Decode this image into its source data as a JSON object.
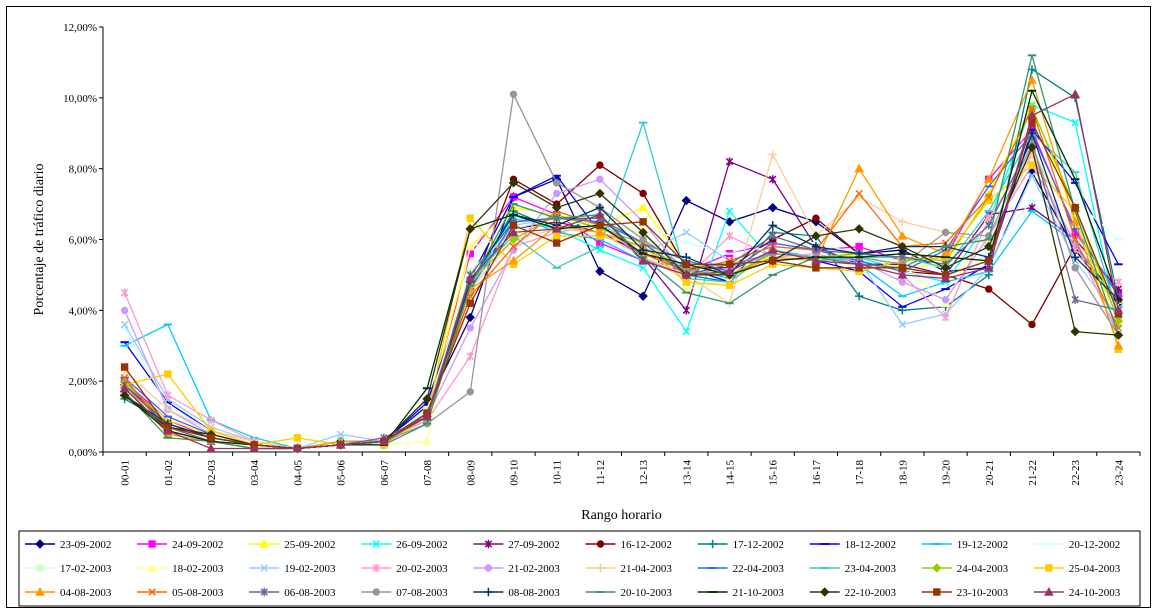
{
  "chart_data": {
    "type": "line",
    "title": "",
    "xlabel": "Rango horario",
    "ylabel": "Porcentaje de tráfico diario",
    "ylim": [
      0,
      12
    ],
    "y_ticks": [
      "0,00%",
      "2,00%",
      "4,00%",
      "6,00%",
      "8,00%",
      "10,00%",
      "12,00%"
    ],
    "categories": [
      "00-01",
      "01-02",
      "02-03",
      "03-04",
      "04-05",
      "05-06",
      "06-07",
      "07-08",
      "08-09",
      "09-10",
      "10-11",
      "11-12",
      "12-13",
      "13-14",
      "14-15",
      "15-16",
      "16-17",
      "17-18",
      "18-19",
      "19-20",
      "20-21",
      "21-22",
      "22-23",
      "23-24"
    ],
    "grid": false,
    "legend_placement": "bottom",
    "series": [
      {
        "name": "23-09-2002",
        "color": "#000080",
        "marker": "diamond",
        "values": [
          1.9,
          0.8,
          0.4,
          0.2,
          0.1,
          0.3,
          0.3,
          1.3,
          3.8,
          7.2,
          7.7,
          5.1,
          4.4,
          7.1,
          6.5,
          6.9,
          6.5,
          5.6,
          5.7,
          5.1,
          5.2,
          7.9,
          5.7,
          4.2
        ]
      },
      {
        "name": "24-09-2002",
        "color": "#ff00ff",
        "marker": "square",
        "values": [
          2.0,
          0.9,
          0.4,
          0.2,
          0.1,
          0.2,
          0.3,
          1.2,
          5.6,
          7.2,
          6.7,
          5.9,
          5.4,
          5.1,
          5.6,
          5.9,
          5.7,
          5.8,
          5.4,
          5.5,
          7.7,
          9.1,
          6.2,
          4.5
        ]
      },
      {
        "name": "25-09-2002",
        "color": "#ffff00",
        "marker": "triangle",
        "values": [
          1.9,
          0.9,
          0.5,
          0.2,
          0.1,
          0.2,
          0.3,
          1.1,
          5.8,
          6.9,
          6.7,
          6.4,
          6.9,
          5.3,
          5.2,
          5.6,
          5.4,
          5.6,
          5.2,
          5.3,
          7.3,
          9.8,
          6.6,
          3.7
        ]
      },
      {
        "name": "26-09-2002",
        "color": "#00ffff",
        "marker": "x",
        "values": [
          2.0,
          0.7,
          0.4,
          0.2,
          0.1,
          0.3,
          0.2,
          1.0,
          4.7,
          6.6,
          6.3,
          5.7,
          5.2,
          3.4,
          6.8,
          5.4,
          5.5,
          5.5,
          5.1,
          4.8,
          6.5,
          9.8,
          9.3,
          3.6
        ]
      },
      {
        "name": "27-09-2002",
        "color": "#800080",
        "marker": "star",
        "values": [
          1.9,
          0.8,
          0.4,
          0.2,
          0.1,
          0.2,
          0.2,
          1.1,
          4.8,
          6.3,
          6.5,
          6.2,
          5.5,
          4.0,
          8.2,
          7.7,
          5.8,
          5.3,
          5.3,
          5.0,
          6.7,
          6.9,
          6.0,
          4.6
        ]
      },
      {
        "name": "16-12-2002",
        "color": "#800000",
        "marker": "circle",
        "values": [
          2.0,
          0.8,
          0.4,
          0.2,
          0.1,
          0.2,
          0.3,
          1.0,
          4.5,
          7.7,
          7.0,
          8.1,
          7.3,
          5.2,
          5.2,
          6.0,
          6.6,
          5.6,
          5.1,
          5.0,
          4.6,
          3.6,
          5.8,
          4.3
        ]
      },
      {
        "name": "17-12-2002",
        "color": "#008080",
        "marker": "plus",
        "values": [
          1.5,
          0.8,
          0.4,
          0.2,
          0.1,
          0.2,
          0.3,
          0.9,
          4.7,
          6.8,
          6.3,
          6.5,
          5.4,
          5.0,
          4.8,
          6.2,
          6.1,
          4.4,
          4.0,
          4.1,
          5.0,
          10.8,
          10.0,
          4.3
        ]
      },
      {
        "name": "18-12-2002",
        "color": "#0000ff",
        "marker": "dash",
        "values": [
          3.1,
          1.4,
          0.6,
          0.3,
          0.1,
          0.2,
          0.3,
          1.4,
          4.9,
          7.2,
          7.8,
          6.2,
          5.6,
          5.2,
          4.8,
          5.7,
          5.4,
          5.1,
          4.1,
          4.6,
          5.3,
          9.1,
          7.6,
          5.3
        ]
      },
      {
        "name": "19-12-2002",
        "color": "#00ccff",
        "marker": "dash",
        "values": [
          3.0,
          3.6,
          0.9,
          0.4,
          0.1,
          0.2,
          0.3,
          1.2,
          4.7,
          6.7,
          6.2,
          6.0,
          5.4,
          5.2,
          4.9,
          5.7,
          5.5,
          5.3,
          4.4,
          4.8,
          5.1,
          6.8,
          5.9,
          4.1
        ]
      },
      {
        "name": "20-12-2002",
        "color": "#ccffff",
        "marker": "dash",
        "values": [
          3.5,
          1.3,
          0.6,
          0.3,
          0.1,
          0.2,
          0.3,
          1.2,
          4.5,
          6.4,
          6.7,
          6.2,
          6.4,
          5.9,
          5.6,
          5.8,
          5.9,
          5.6,
          5.1,
          4.9,
          5.6,
          7.1,
          7.1,
          6.0
        ]
      },
      {
        "name": "17-02-2003",
        "color": "#ccffcc",
        "marker": "square",
        "values": [
          1.9,
          0.7,
          0.4,
          0.2,
          0.1,
          0.2,
          0.3,
          1.2,
          5.1,
          6.3,
          6.6,
          6.4,
          6.2,
          4.7,
          4.8,
          5.6,
          5.5,
          5.6,
          5.4,
          5.2,
          5.8,
          8.5,
          6.5,
          4.0
        ]
      },
      {
        "name": "18-02-2003",
        "color": "#ffff99",
        "marker": "triangle",
        "values": [
          1.8,
          0.7,
          0.4,
          0.2,
          0.1,
          0.2,
          0.2,
          0.3,
          5.8,
          6.1,
          6.6,
          6.3,
          6.3,
          4.6,
          4.8,
          5.6,
          5.4,
          5.5,
          5.3,
          4.2,
          6.6,
          8.6,
          6.4,
          3.7
        ]
      },
      {
        "name": "19-02-2003",
        "color": "#99ccff",
        "marker": "x",
        "values": [
          3.6,
          1.5,
          0.7,
          0.3,
          0.1,
          0.5,
          0.3,
          1.1,
          4.7,
          6.4,
          6.6,
          6.5,
          5.6,
          6.2,
          5.4,
          5.8,
          5.7,
          5.4,
          3.6,
          3.9,
          5.2,
          7.8,
          5.4,
          3.8
        ]
      },
      {
        "name": "20-02-2003",
        "color": "#ff99cc",
        "marker": "star",
        "values": [
          4.5,
          1.6,
          0.9,
          0.3,
          0.1,
          0.2,
          0.3,
          0.9,
          2.7,
          5.8,
          6.2,
          6.4,
          5.5,
          4.9,
          6.1,
          5.5,
          5.6,
          5.3,
          5.0,
          3.8,
          6.6,
          8.4,
          5.7,
          4.8
        ]
      },
      {
        "name": "21-02-2003",
        "color": "#cc99ff",
        "marker": "circle",
        "values": [
          4.0,
          1.2,
          0.5,
          0.2,
          0.1,
          0.2,
          0.3,
          1.0,
          3.5,
          5.7,
          7.3,
          7.7,
          6.5,
          5.0,
          5.2,
          5.6,
          5.5,
          5.4,
          4.8,
          4.3,
          6.1,
          8.1,
          5.9,
          3.3
        ]
      },
      {
        "name": "21-04-2003",
        "color": "#ffcc99",
        "marker": "plus",
        "values": [
          2.3,
          1.2,
          0.6,
          0.3,
          0.1,
          0.2,
          0.3,
          1.0,
          4.6,
          6.0,
          6.3,
          6.2,
          5.5,
          5.0,
          4.2,
          8.4,
          6.1,
          7.2,
          6.5,
          6.2,
          5.9,
          8.4,
          6.5,
          4.2
        ]
      },
      {
        "name": "22-04-2003",
        "color": "#3366ff",
        "marker": "dash",
        "values": [
          2.1,
          1.0,
          0.5,
          0.2,
          0.1,
          0.2,
          0.3,
          1.1,
          4.6,
          6.5,
          6.6,
          6.5,
          5.9,
          5.4,
          5.1,
          5.9,
          5.7,
          5.4,
          5.1,
          5.7,
          7.5,
          9.0,
          6.3,
          4.4
        ]
      },
      {
        "name": "23-04-2003",
        "color": "#33cccc",
        "marker": "dash",
        "values": [
          2.0,
          0.8,
          0.4,
          0.2,
          0.1,
          0.2,
          0.3,
          1.0,
          4.9,
          6.1,
          5.2,
          5.8,
          9.3,
          4.9,
          4.8,
          5.7,
          5.4,
          5.5,
          5.5,
          5.2,
          6.8,
          9.0,
          7.9,
          3.8
        ]
      },
      {
        "name": "24-04-2003",
        "color": "#99cc00",
        "marker": "diamond",
        "values": [
          2.0,
          0.8,
          0.4,
          0.2,
          0.1,
          0.2,
          0.3,
          1.0,
          4.8,
          6.0,
          6.7,
          6.3,
          5.9,
          5.1,
          5.0,
          5.6,
          5.5,
          5.6,
          5.5,
          5.4,
          7.2,
          9.7,
          6.9,
          3.7
        ]
      },
      {
        "name": "25-04-2003",
        "color": "#ffcc00",
        "marker": "square",
        "values": [
          1.9,
          2.2,
          0.6,
          0.2,
          0.4,
          0.2,
          0.2,
          1.0,
          6.6,
          5.3,
          6.1,
          6.1,
          5.8,
          4.8,
          4.7,
          5.3,
          5.2,
          5.1,
          5.4,
          5.5,
          7.1,
          8.1,
          6.8,
          2.9
        ]
      },
      {
        "name": "04-08-2003",
        "color": "#ff9900",
        "marker": "triangle",
        "values": [
          1.9,
          0.5,
          0.3,
          0.1,
          0.1,
          0.3,
          0.3,
          1.0,
          4.6,
          5.4,
          6.4,
          6.2,
          5.8,
          5.0,
          5.0,
          5.5,
          5.4,
          8.0,
          6.1,
          5.6,
          7.7,
          10.5,
          6.5,
          3.0
        ]
      },
      {
        "name": "05-08-2003",
        "color": "#ff6600",
        "marker": "x",
        "values": [
          2.1,
          0.6,
          0.3,
          0.1,
          0.1,
          0.2,
          0.3,
          1.0,
          4.4,
          5.8,
          6.8,
          6.4,
          5.6,
          5.1,
          5.4,
          5.8,
          5.7,
          7.3,
          5.8,
          5.9,
          7.2,
          9.7,
          6.0,
          3.5
        ]
      },
      {
        "name": "06-08-2003",
        "color": "#666699",
        "marker": "star",
        "values": [
          1.9,
          0.7,
          0.3,
          0.2,
          0.1,
          0.2,
          0.4,
          1.0,
          5.0,
          6.5,
          6.6,
          6.6,
          5.9,
          5.0,
          5.3,
          6.1,
          5.7,
          5.6,
          5.5,
          5.3,
          6.4,
          8.8,
          4.3,
          4.0
        ]
      },
      {
        "name": "07-08-2003",
        "color": "#969696",
        "marker": "circle",
        "values": [
          1.8,
          0.6,
          0.3,
          0.2,
          0.1,
          0.2,
          0.3,
          0.8,
          1.7,
          10.1,
          7.6,
          6.9,
          6.0,
          5.2,
          5.3,
          5.6,
          5.5,
          5.5,
          5.3,
          6.2,
          6.1,
          8.7,
          5.2,
          3.3
        ]
      },
      {
        "name": "08-08-2003",
        "color": "#003366",
        "marker": "plus",
        "values": [
          1.6,
          0.8,
          0.4,
          0.2,
          0.1,
          0.2,
          0.3,
          1.0,
          4.8,
          6.7,
          6.4,
          6.9,
          5.7,
          5.5,
          5.0,
          6.4,
          5.8,
          5.6,
          5.8,
          5.8,
          5.5,
          9.0,
          5.5,
          4.3
        ]
      },
      {
        "name": "20-10-2003",
        "color": "#339966",
        "marker": "dash",
        "values": [
          1.7,
          0.4,
          0.3,
          0.1,
          0.1,
          0.2,
          0.2,
          0.8,
          4.7,
          7.0,
          6.6,
          6.7,
          5.5,
          4.5,
          4.2,
          5.0,
          5.5,
          5.3,
          5.2,
          5.8,
          6.0,
          11.2,
          6.8,
          3.3
        ]
      },
      {
        "name": "21-10-2003",
        "color": "#003300",
        "marker": "dash",
        "values": [
          1.6,
          0.6,
          0.3,
          0.2,
          0.1,
          0.2,
          0.2,
          1.8,
          6.3,
          6.7,
          6.3,
          6.4,
          5.6,
          5.3,
          5.0,
          5.4,
          5.5,
          5.5,
          5.6,
          5.5,
          5.4,
          10.2,
          7.7,
          4.3
        ]
      },
      {
        "name": "22-10-2003",
        "color": "#333300",
        "marker": "diamond",
        "values": [
          1.6,
          0.7,
          0.5,
          0.2,
          0.1,
          0.2,
          0.3,
          1.5,
          6.3,
          7.6,
          6.9,
          7.3,
          6.2,
          5.0,
          5.0,
          5.4,
          6.1,
          6.3,
          5.8,
          5.2,
          5.8,
          8.6,
          3.4,
          3.3
        ]
      },
      {
        "name": "23-10-2003",
        "color": "#993300",
        "marker": "square",
        "values": [
          2.4,
          0.7,
          0.4,
          0.2,
          0.1,
          0.2,
          0.3,
          1.1,
          4.2,
          6.4,
          5.9,
          6.4,
          6.5,
          5.3,
          5.3,
          5.4,
          5.2,
          5.2,
          5.2,
          5.0,
          5.4,
          9.3,
          6.9,
          3.9
        ]
      },
      {
        "name": "24-10-2003",
        "color": "#993366",
        "marker": "triangle",
        "values": [
          1.8,
          0.6,
          0.1,
          0.1,
          0.1,
          0.2,
          0.3,
          1.0,
          4.9,
          6.2,
          6.3,
          6.7,
          5.4,
          5.0,
          5.1,
          5.7,
          5.4,
          5.3,
          5.0,
          4.9,
          5.2,
          9.5,
          10.1,
          4.0
        ]
      }
    ]
  }
}
